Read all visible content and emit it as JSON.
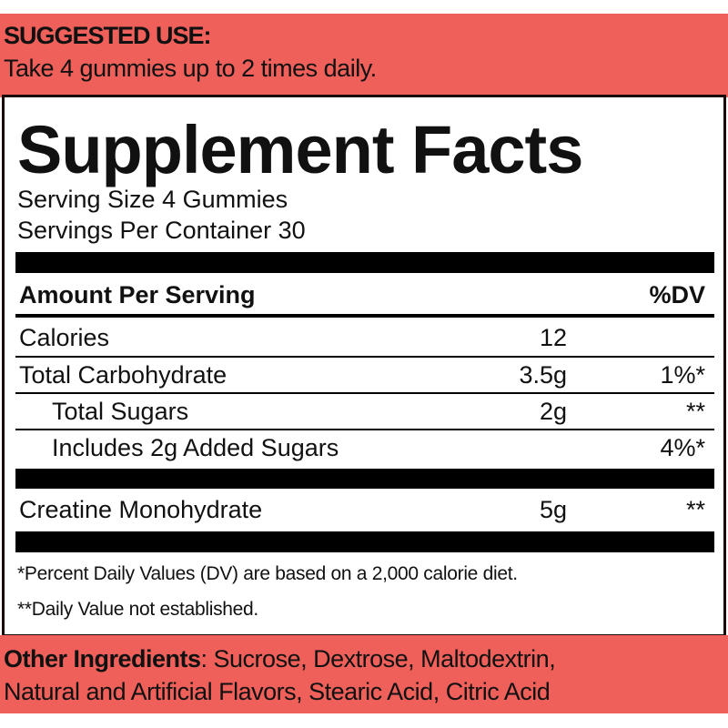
{
  "suggested_use": {
    "title": "SUGGESTED USE:",
    "text": "Take 4 gummies up to 2 times daily."
  },
  "facts": {
    "title": "Supplement Facts",
    "serving_size": "Serving Size 4 Gummies",
    "servings_per_container": "Servings Per Container  30",
    "header": {
      "amount": "Amount Per Serving",
      "dv": "%DV"
    },
    "rows": [
      {
        "name": "Calories",
        "amount": "12",
        "dv": ""
      },
      {
        "name": "Total Carbohydrate",
        "amount": "3.5g",
        "dv": "1%*"
      },
      {
        "name": "Total Sugars",
        "amount": "2g",
        "dv": "**"
      },
      {
        "name": "Includes 2g Added Sugars",
        "amount": "",
        "dv": "4%*"
      },
      {
        "name": "Creatine Monohydrate",
        "amount": "5g",
        "dv": "**"
      }
    ],
    "footnotes": [
      "*Percent Daily Values (DV) are based on a 2,000 calorie diet.",
      "**Daily Value not established."
    ]
  },
  "other_ingredients": {
    "label": "Other Ingredients",
    "line1": ": Sucrose,  Dextrose,  Maltodextrin,",
    "line2": "Natural and Artificial Flavors, Stearic Acid, Citric Acid"
  },
  "colors": {
    "band": "#ef605a",
    "text": "#111111",
    "rule": "#000000"
  }
}
